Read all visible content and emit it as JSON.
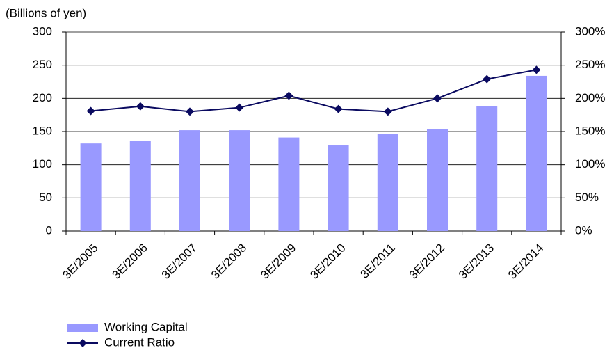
{
  "chart_data": {
    "type": "bar-line",
    "y_axis_label": "(Billions of yen)",
    "categories": [
      "3E/2005",
      "3E/2006",
      "3E/2007",
      "3E/2008",
      "3E/2009",
      "3E/2010",
      "3E/2011",
      "3E/2012",
      "3E/2013",
      "3E/2014"
    ],
    "series": [
      {
        "name": "Working Capital",
        "type": "bar",
        "color": "#9999ff",
        "values": [
          132,
          136,
          152,
          152,
          141,
          129,
          146,
          154,
          188,
          234
        ]
      },
      {
        "name": "Current Ratio",
        "type": "line",
        "axis": "y2",
        "color": "#0a0a60",
        "values": [
          181,
          188,
          180,
          186,
          204,
          184,
          180,
          200,
          229,
          243
        ]
      }
    ],
    "ylim": [
      0,
      300
    ],
    "yticks": [
      0,
      50,
      100,
      150,
      200,
      250,
      300
    ],
    "y2lim": [
      0,
      300
    ],
    "y2ticks": [
      {
        "value": 0,
        "label": "0%"
      },
      {
        "value": 50,
        "label": "50%"
      },
      {
        "value": 100,
        "label": "100%"
      },
      {
        "value": 150,
        "label": "150%"
      },
      {
        "value": 200,
        "label": "200%"
      },
      {
        "value": 250,
        "label": "250%"
      },
      {
        "value": 300,
        "label": "300%"
      }
    ],
    "grid": true
  }
}
